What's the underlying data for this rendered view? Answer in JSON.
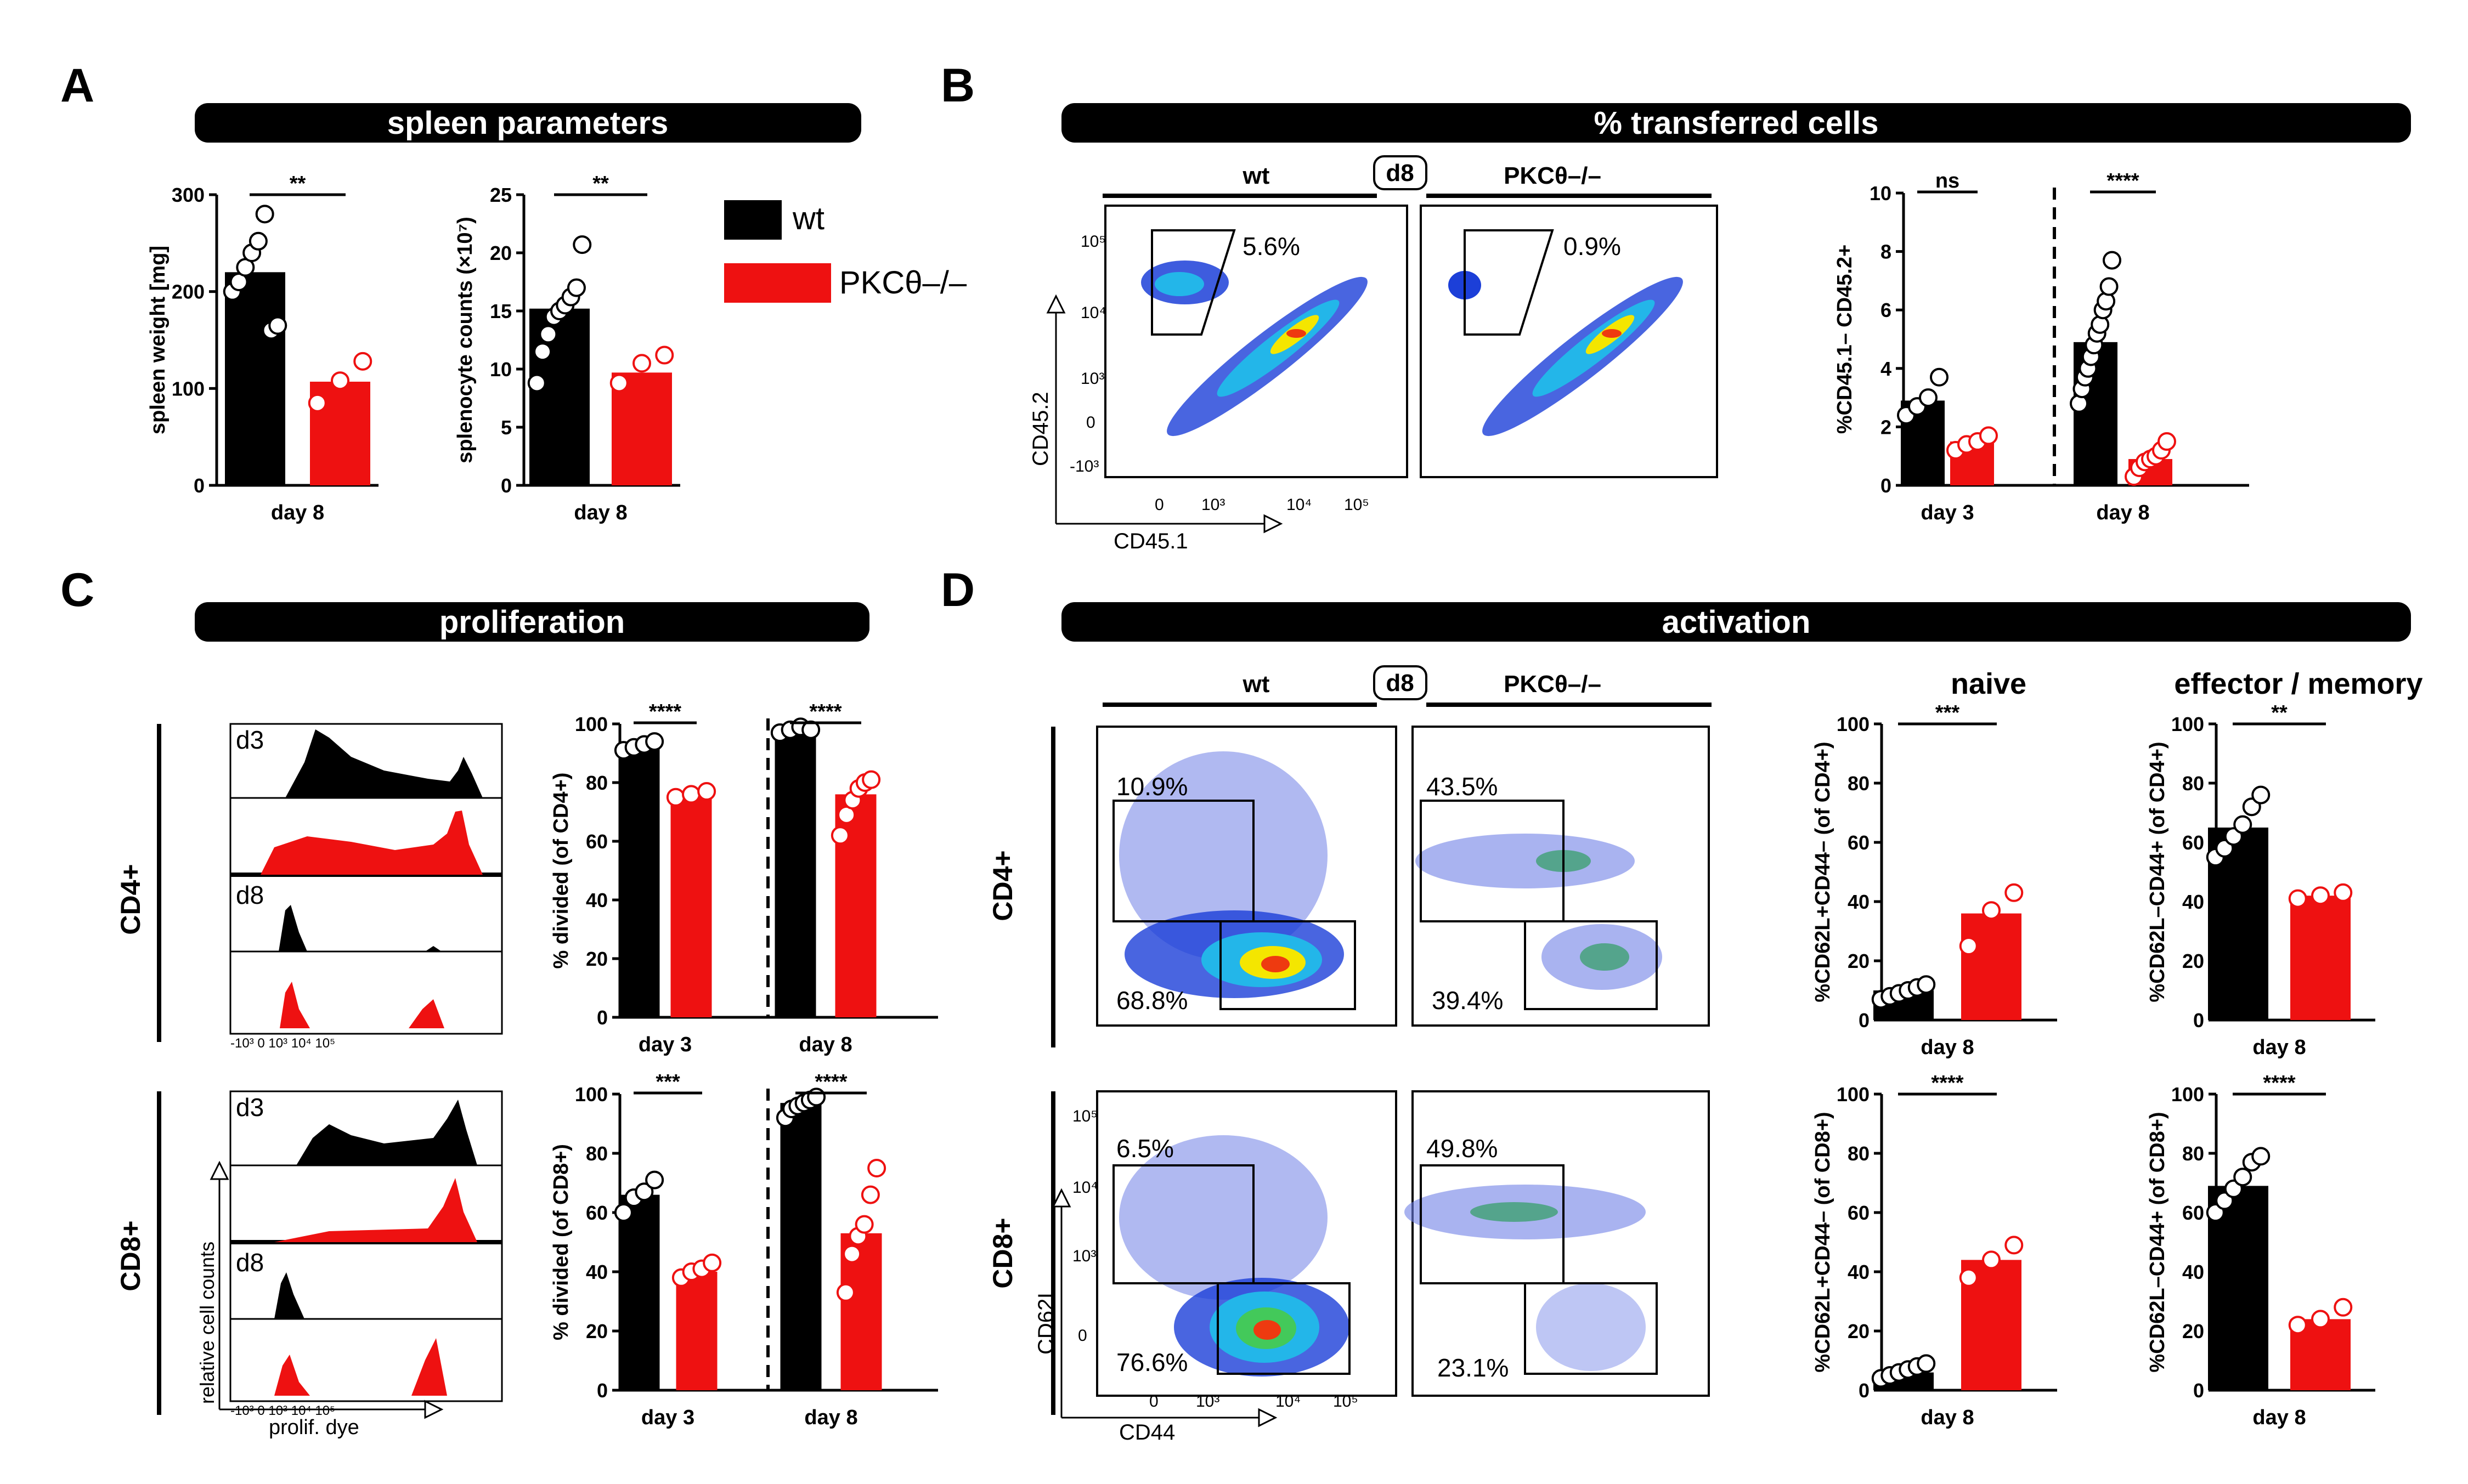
{
  "panels": {
    "A": "A",
    "B": "B",
    "C": "C",
    "D": "D"
  },
  "banners": {
    "A": "spleen parameters",
    "B": "% transferred cells",
    "C": "proliferation",
    "D": "activation"
  },
  "legend": {
    "wt": "wt",
    "ko": "PKCθ–/–",
    "wt_color": "#000000",
    "ko_color": "#ee1111"
  },
  "flow": {
    "col_wt": "wt",
    "col_ko": "PKCθ–/–",
    "day_box": "d8",
    "B": {
      "xlabel": "CD45.1",
      "ylabel": "CD45.2",
      "wt_pct": "5.6%",
      "ko_pct": "0.9%"
    },
    "D": {
      "xlabel": "CD44",
      "ylabel": "CD62L",
      "cd4_wt_top": "10.9%",
      "cd4_wt_bot": "68.8%",
      "cd4_ko_top": "43.5%",
      "cd4_ko_bot": "39.4%",
      "cd8_wt_top": "6.5%",
      "cd8_wt_bot": "76.6%",
      "cd8_ko_top": "49.8%",
      "cd8_ko_bot": "23.1%"
    },
    "rows": {
      "cd4": "CD4+",
      "cd8": "CD8+"
    }
  },
  "histogram": {
    "d3": "d3",
    "d8": "d8",
    "ylabel": "relative cell counts",
    "xlabel": "prolif. dye"
  },
  "subtitles": {
    "naive": "naive",
    "effector": "effector / memory"
  },
  "chart_data": [
    {
      "id": "A1",
      "type": "bar",
      "categories": [
        "wt",
        "PKCθ–/–"
      ],
      "xlabel": "day 8",
      "ylabel": "spleen weight [mg]",
      "ylim": [
        0,
        300
      ],
      "ticks": [
        0,
        100,
        200,
        300
      ],
      "values": [
        220,
        107
      ],
      "points": [
        [
          200,
          210,
          225,
          240,
          252,
          280,
          160,
          165
        ],
        [
          85,
          108,
          128
        ]
      ],
      "sig": "**"
    },
    {
      "id": "A2",
      "type": "bar",
      "categories": [
        "wt",
        "PKCθ–/–"
      ],
      "xlabel": "day 8",
      "ylabel": "splenocyte counts (×10⁷)",
      "ylim": [
        0,
        25
      ],
      "ticks": [
        0,
        5,
        10,
        15,
        20,
        25
      ],
      "values": [
        15.2,
        9.7
      ],
      "points": [
        [
          8.8,
          11.5,
          13,
          14.5,
          15,
          15.5,
          16.2,
          17,
          20.7
        ],
        [
          8.8,
          10.5,
          11.2
        ]
      ],
      "sig": "**"
    },
    {
      "id": "B",
      "type": "bar",
      "categories": [
        "day 3",
        "day 8"
      ],
      "series": [
        "wt",
        "PKCθ–/–"
      ],
      "ylabel": "%CD45.1– CD45.2+",
      "ylim": [
        0,
        10
      ],
      "ticks": [
        0,
        2,
        4,
        6,
        8,
        10
      ],
      "values": [
        [
          2.9,
          1.5
        ],
        [
          4.9,
          0.9
        ]
      ],
      "points": [
        [
          [
            2.4,
            2.7,
            3.0,
            3.7
          ],
          [
            1.2,
            1.4,
            1.5,
            1.7
          ]
        ],
        [
          [
            2.8,
            3.3,
            3.7,
            4.0,
            4.4,
            4.8,
            5.2,
            5.5,
            6.0,
            6.3,
            6.8,
            7.7
          ],
          [
            0.3,
            0.6,
            0.8,
            0.9,
            1.0,
            1.2,
            1.5
          ]
        ]
      ],
      "sigs": [
        "ns",
        "****"
      ]
    },
    {
      "id": "C1",
      "type": "bar",
      "categories": [
        "day 3",
        "day 8"
      ],
      "series": [
        "wt",
        "PKCθ–/–"
      ],
      "ylabel": "% divided (of CD4+)",
      "ylim": [
        0,
        100
      ],
      "ticks": [
        0,
        20,
        40,
        60,
        80,
        100
      ],
      "values": [
        [
          92,
          76
        ],
        [
          98,
          76
        ]
      ],
      "points": [
        [
          [
            91,
            92,
            93,
            94
          ],
          [
            75,
            76,
            77
          ]
        ],
        [
          [
            97,
            98,
            99,
            98
          ],
          [
            62,
            69,
            74,
            78,
            80,
            81
          ]
        ]
      ],
      "sigs": [
        "****",
        "****"
      ]
    },
    {
      "id": "C2",
      "type": "bar",
      "categories": [
        "day 3",
        "day 8"
      ],
      "series": [
        "wt",
        "PKCθ–/–"
      ],
      "ylabel": "% divided (of CD8+)",
      "ylim": [
        0,
        100
      ],
      "ticks": [
        0,
        20,
        40,
        60,
        80,
        100
      ],
      "values": [
        [
          66,
          40
        ],
        [
          97,
          53
        ]
      ],
      "points": [
        [
          [
            60,
            65,
            67,
            71
          ],
          [
            38,
            40,
            41,
            43
          ]
        ],
        [
          [
            92,
            95,
            96,
            97,
            98,
            99
          ],
          [
            33,
            46,
            52,
            56,
            66,
            75
          ]
        ]
      ],
      "sigs": [
        "***",
        "****"
      ]
    },
    {
      "id": "D1",
      "type": "bar",
      "categories": [
        "wt",
        "PKCθ–/–"
      ],
      "xlabel": "day 8",
      "ylabel": "%CD62L+CD44– (of CD4+)",
      "ylim": [
        0,
        100
      ],
      "ticks": [
        0,
        20,
        40,
        60,
        80,
        100
      ],
      "values": [
        10,
        36
      ],
      "points": [
        [
          7,
          8,
          9,
          10,
          11,
          12
        ],
        [
          25,
          37,
          43
        ]
      ],
      "sig": "***"
    },
    {
      "id": "D2",
      "type": "bar",
      "categories": [
        "wt",
        "PKCθ–/–"
      ],
      "xlabel": "day 8",
      "ylabel": "%CD62L–CD44+ (of CD4+)",
      "ylim": [
        0,
        100
      ],
      "ticks": [
        0,
        20,
        40,
        60,
        80,
        100
      ],
      "values": [
        65,
        42
      ],
      "points": [
        [
          55,
          58,
          62,
          66,
          72,
          76
        ],
        [
          41,
          42,
          43
        ]
      ],
      "sig": "**"
    },
    {
      "id": "D3",
      "type": "bar",
      "categories": [
        "wt",
        "PKCθ–/–"
      ],
      "xlabel": "day 8",
      "ylabel": "%CD62L+CD44– (of CD8+)",
      "ylim": [
        0,
        100
      ],
      "ticks": [
        0,
        20,
        40,
        60,
        80,
        100
      ],
      "values": [
        6,
        44
      ],
      "points": [
        [
          4,
          5,
          6,
          7,
          8,
          9
        ],
        [
          38,
          44,
          49
        ]
      ],
      "sig": "****"
    },
    {
      "id": "D4",
      "type": "bar",
      "categories": [
        "wt",
        "PKCθ–/–"
      ],
      "xlabel": "day 8",
      "ylabel": "%CD62L–CD44+ (of CD8+)",
      "ylim": [
        0,
        100
      ],
      "ticks": [
        0,
        20,
        40,
        60,
        80,
        100
      ],
      "values": [
        69,
        24
      ],
      "points": [
        [
          60,
          64,
          68,
          72,
          77,
          79
        ],
        [
          22,
          24,
          28
        ]
      ],
      "sig": "****"
    }
  ]
}
